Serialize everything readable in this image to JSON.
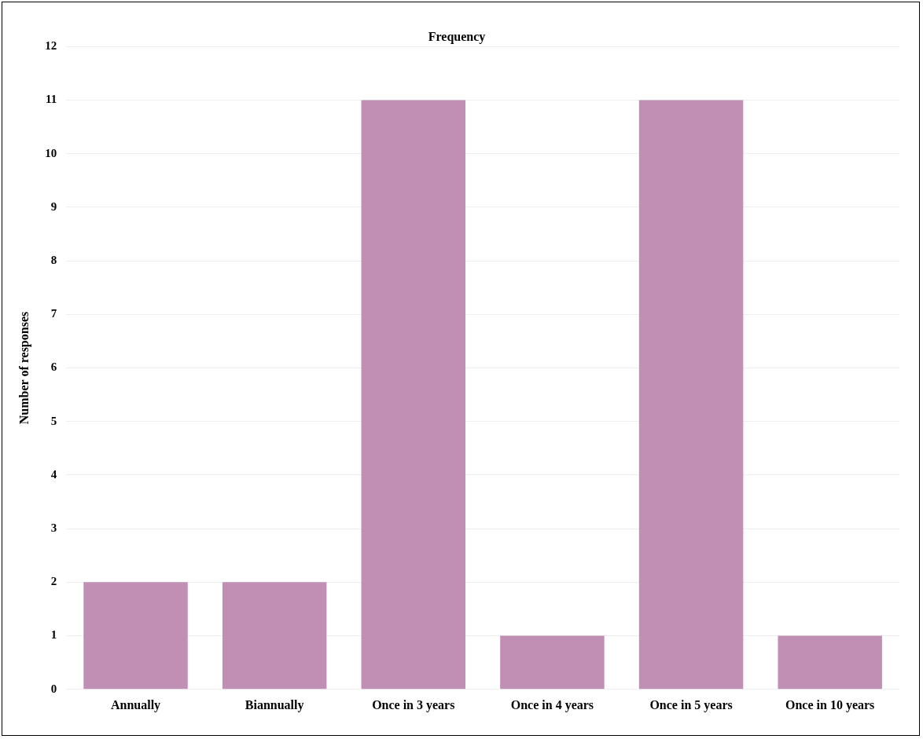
{
  "chart_data": {
    "type": "bar",
    "title": "Frequency",
    "ylabel": "Number of responses",
    "categories": [
      "Annually",
      "Biannually",
      "Once in 3 years",
      "Once in 4 years",
      "Once in 5 years",
      "Once in 10 years"
    ],
    "values": [
      2,
      2,
      11,
      1,
      11,
      1
    ],
    "color": "#c28fb4",
    "ylim": [
      0,
      12
    ],
    "yticks": [
      0,
      1,
      2,
      3,
      4,
      5,
      6,
      7,
      8,
      9,
      10,
      11,
      12
    ],
    "grid": "y",
    "legend": false
  }
}
